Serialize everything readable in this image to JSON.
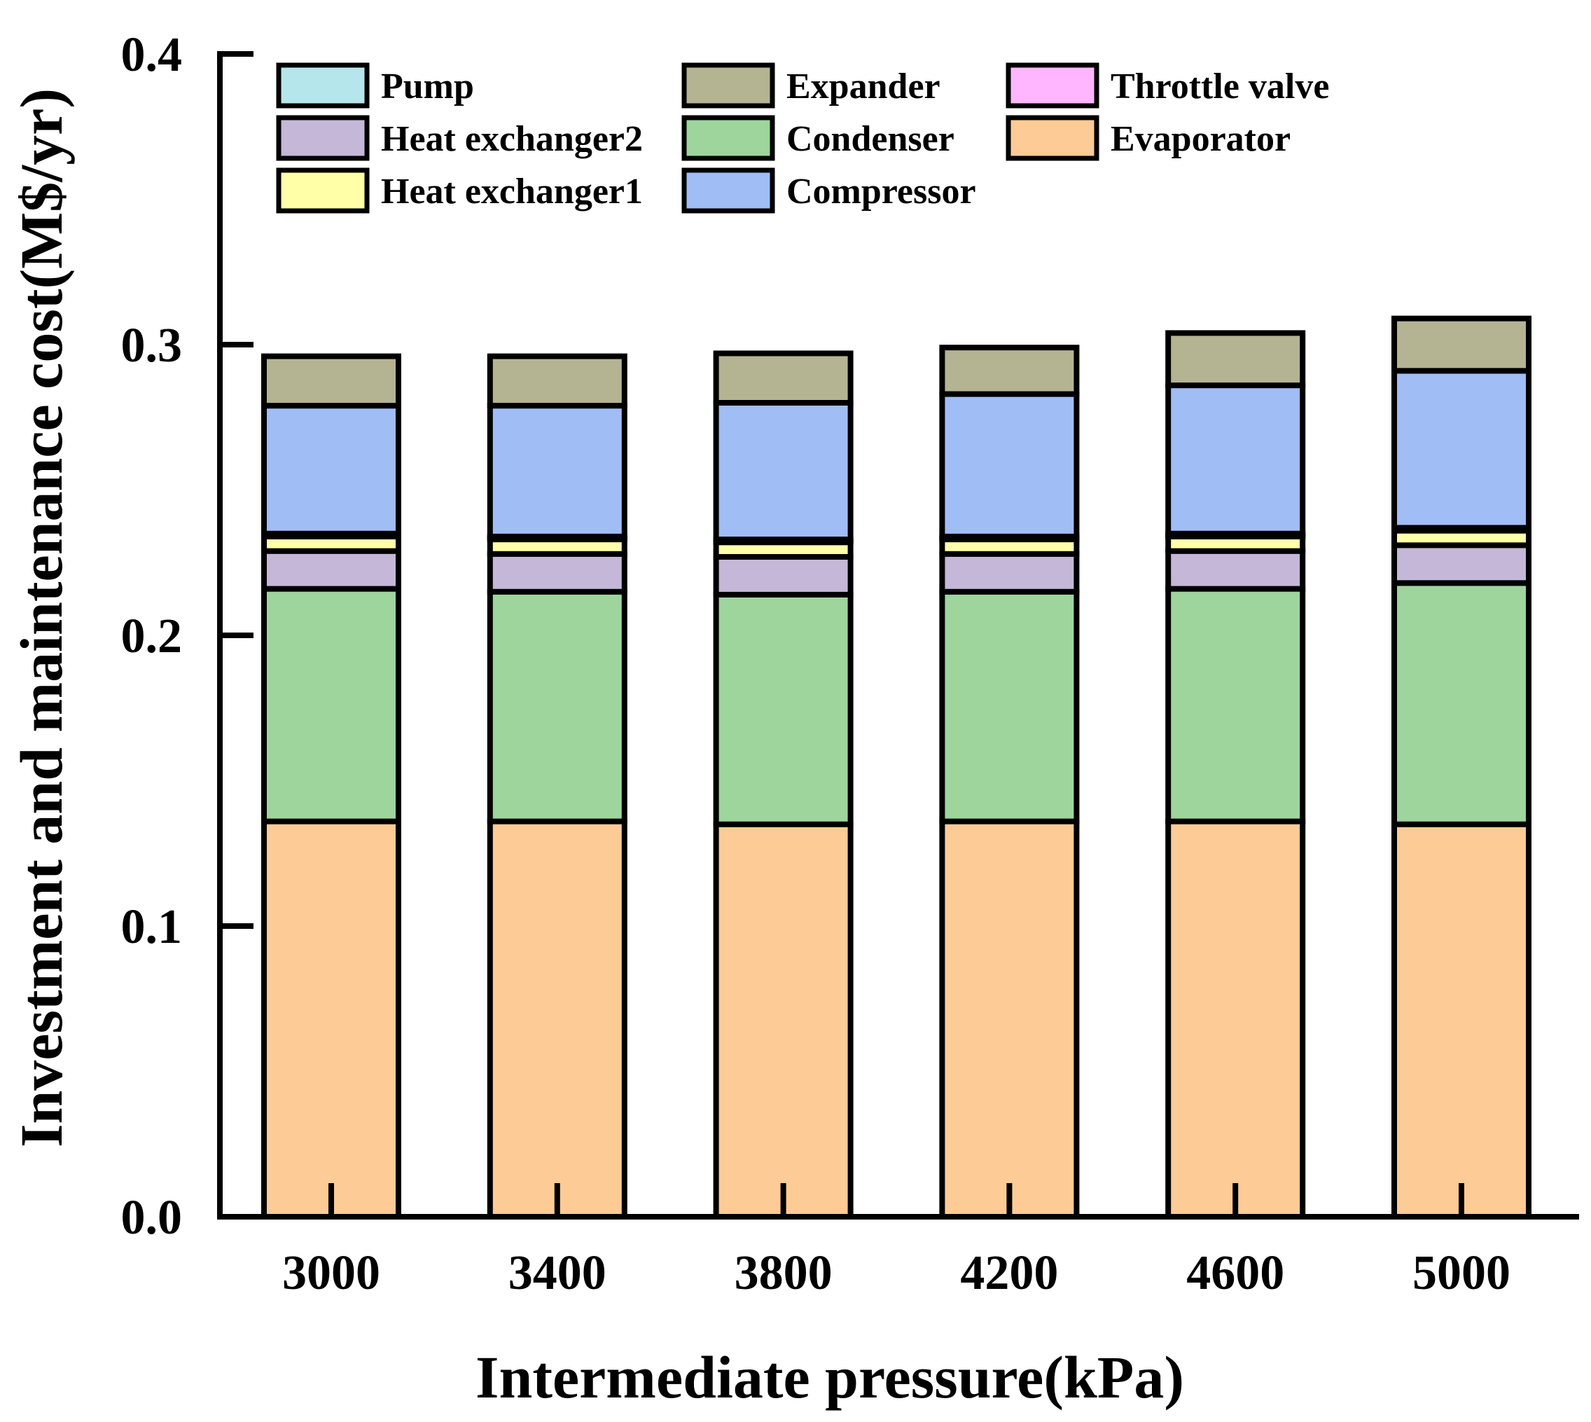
{
  "chart_data": {
    "type": "bar",
    "stacked": true,
    "title": "",
    "xlabel": "Intermediate pressure(kPa)",
    "ylabel": "Investment and maintenance cost(M$/yr)",
    "ylim": [
      0,
      0.4
    ],
    "yticks": [
      "0.0",
      "0.1",
      "0.2",
      "0.3",
      "0.4"
    ],
    "categories": [
      "3000",
      "3400",
      "3800",
      "4200",
      "4600",
      "5000"
    ],
    "series": [
      {
        "name": "Evaporator",
        "color": "#FDCB95",
        "values": [
          0.136,
          0.136,
          0.135,
          0.136,
          0.136,
          0.135
        ]
      },
      {
        "name": "Condenser",
        "color": "#9DD59C",
        "values": [
          0.08,
          0.079,
          0.079,
          0.079,
          0.08,
          0.083
        ]
      },
      {
        "name": "Heat exchanger2",
        "color": "#C5B7D8",
        "values": [
          0.013,
          0.013,
          0.013,
          0.013,
          0.013,
          0.013
        ]
      },
      {
        "name": "Heat exchanger1",
        "color": "#FFFFA8",
        "values": [
          0.005,
          0.005,
          0.005,
          0.005,
          0.005,
          0.005
        ]
      },
      {
        "name": "Throttle valve",
        "color": "#FFB6FF",
        "values": [
          0.0005,
          0.0005,
          0.0005,
          0.0005,
          0.0005,
          0.0005
        ]
      },
      {
        "name": "Pump",
        "color": "#B5E6EC",
        "values": [
          0.0005,
          0.0005,
          0.0005,
          0.0005,
          0.0005,
          0.0005
        ]
      },
      {
        "name": "Compressor",
        "color": "#A0BDF6",
        "values": [
          0.044,
          0.045,
          0.047,
          0.049,
          0.051,
          0.054
        ]
      },
      {
        "name": "Expander",
        "color": "#B4B493",
        "values": [
          0.017,
          0.017,
          0.017,
          0.016,
          0.018,
          0.018
        ]
      }
    ],
    "legend_position": "top-left",
    "legend_order": [
      "Pump",
      "Expander",
      "Throttle valve",
      "Heat exchanger2",
      "Condenser",
      "Evaporator",
      "Heat exchanger1",
      "Compressor"
    ],
    "grid": false
  }
}
